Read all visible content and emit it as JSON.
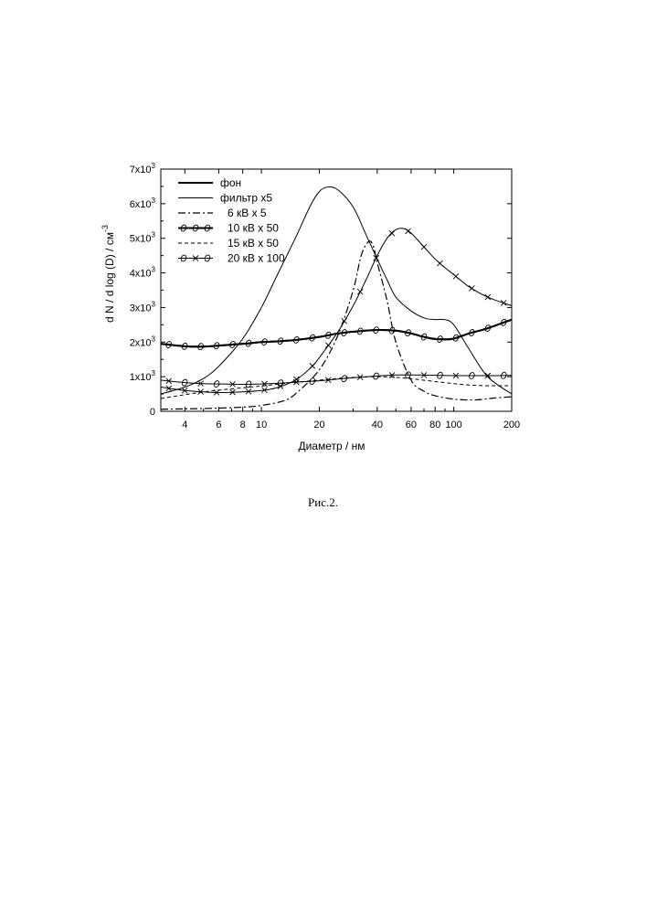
{
  "chart_data": {
    "type": "line",
    "x_scale": "log",
    "xlim": [
      3,
      200
    ],
    "ylim": [
      0,
      7000
    ],
    "xlabel": "Диаметр   /  нм",
    "ylabel": "d N / d log (D)    /   см",
    "ylabel_exponent": "-3",
    "x_ticks": [
      4,
      6,
      8,
      10,
      20,
      40,
      60,
      80,
      100,
      200
    ],
    "x_tick_labels": [
      "4",
      "6",
      "8",
      "10",
      "20",
      "40",
      "60",
      "80",
      "100",
      "200"
    ],
    "y_ticks": [
      0,
      1000,
      2000,
      3000,
      4000,
      5000,
      6000,
      7000
    ],
    "y_tick_labels": [
      {
        "mantissa": "0",
        "exp": ""
      },
      {
        "mantissa": "1x10",
        "exp": "3"
      },
      {
        "mantissa": "2x10",
        "exp": "3"
      },
      {
        "mantissa": "3x10",
        "exp": "3"
      },
      {
        "mantissa": "4x10",
        "exp": "3"
      },
      {
        "mantissa": "5x10",
        "exp": "3"
      },
      {
        "mantissa": "6x10",
        "exp": "3"
      },
      {
        "mantissa": "7x10",
        "exp": "3"
      }
    ],
    "legend_position": "top-left",
    "series": [
      {
        "name": "фон",
        "style": "thick-solid",
        "marker": "none",
        "x": [
          3,
          4,
          5,
          6,
          8,
          10,
          12,
          15,
          20,
          25,
          30,
          40,
          50,
          60,
          70,
          80,
          90,
          100,
          120,
          150,
          200
        ],
        "y": [
          1950,
          1880,
          1870,
          1900,
          1950,
          2000,
          2020,
          2060,
          2150,
          2250,
          2300,
          2350,
          2330,
          2250,
          2150,
          2090,
          2080,
          2100,
          2250,
          2400,
          2650
        ]
      },
      {
        "name": "фильтр x5",
        "style": "thin-solid",
        "marker": "none",
        "x": [
          3,
          4,
          5,
          6,
          8,
          10,
          12,
          15,
          18,
          20,
          22,
          25,
          30,
          35,
          40,
          45,
          50,
          60,
          70,
          80,
          90,
          100,
          120,
          150,
          200
        ],
        "y": [
          500,
          700,
          950,
          1300,
          2100,
          3000,
          3900,
          5000,
          5950,
          6350,
          6480,
          6400,
          5900,
          5100,
          4400,
          3800,
          3300,
          2900,
          2700,
          2650,
          2650,
          2500,
          1800,
          1000,
          500
        ]
      },
      {
        "name": "6 кВ  x 5",
        "style": "dash-dot",
        "marker": "none",
        "x": [
          3,
          5,
          8,
          10,
          13,
          15,
          20,
          25,
          30,
          33,
          36,
          38,
          40,
          45,
          50,
          60,
          70,
          80,
          100,
          130,
          160,
          200
        ],
        "y": [
          60,
          80,
          120,
          170,
          300,
          500,
          1200,
          2200,
          3500,
          4500,
          4900,
          4800,
          4300,
          3200,
          2000,
          900,
          580,
          450,
          350,
          330,
          380,
          420
        ]
      },
      {
        "name": "10 кВ  x 50",
        "style": "thick-solid",
        "marker": "circle",
        "x": [
          3,
          4,
          5,
          6,
          8,
          10,
          12,
          15,
          20,
          25,
          30,
          40,
          50,
          60,
          70,
          80,
          90,
          100,
          120,
          150,
          200
        ],
        "y": [
          1950,
          1880,
          1870,
          1900,
          1950,
          2000,
          2020,
          2060,
          2150,
          2250,
          2300,
          2350,
          2330,
          2250,
          2150,
          2090,
          2080,
          2100,
          2250,
          2400,
          2650
        ]
      },
      {
        "name": "15 кВ  x 50",
        "style": "dashed",
        "marker": "none",
        "x": [
          3,
          4,
          5,
          6,
          8,
          10,
          12,
          15,
          20,
          25,
          30,
          40,
          50,
          60,
          80,
          100,
          120,
          150,
          200
        ],
        "y": [
          370,
          480,
          560,
          610,
          680,
          730,
          780,
          840,
          900,
          950,
          980,
          1000,
          980,
          940,
          860,
          800,
          760,
          740,
          740
        ]
      },
      {
        "name": "20 кВ  x 100",
        "style": "thin-solid",
        "marker": "circle-x",
        "x": [
          3,
          4,
          5,
          6,
          8,
          10,
          12,
          15,
          20,
          25,
          30,
          40,
          50,
          60,
          80,
          100,
          150,
          200
        ],
        "y": [
          900,
          830,
          800,
          790,
          780,
          790,
          810,
          840,
          880,
          930,
          970,
          1020,
          1050,
          1050,
          1040,
          1030,
          1030,
          1040
        ]
      },
      {
        "name": "",
        "style": "thin-solid",
        "marker": "x",
        "x": [
          3,
          4,
          5,
          6,
          8,
          10,
          12,
          15,
          18,
          20,
          25,
          30,
          35,
          40,
          45,
          50,
          55,
          60,
          70,
          80,
          90,
          100,
          120,
          150,
          200
        ],
        "y": [
          700,
          600,
          560,
          540,
          560,
          600,
          680,
          900,
          1250,
          1550,
          2300,
          3050,
          3800,
          4500,
          5000,
          5250,
          5280,
          5150,
          4750,
          4400,
          4150,
          3950,
          3600,
          3300,
          3050
        ]
      }
    ]
  },
  "caption": "Рис.2."
}
